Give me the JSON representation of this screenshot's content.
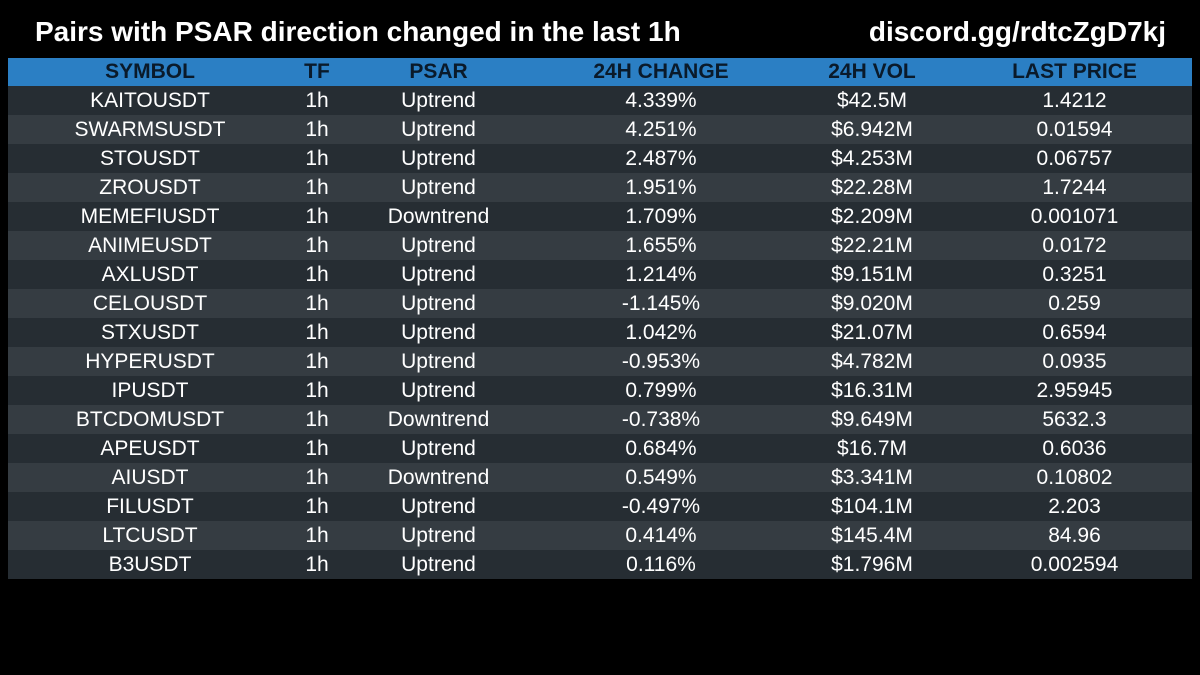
{
  "header": {
    "title": "Pairs with PSAR direction changed in the last 1h",
    "invite": "discord.gg/rdtcZgD7kj"
  },
  "table": {
    "columns": [
      "SYMBOL",
      "TF",
      "PSAR",
      "24H CHANGE",
      "24H VOL",
      "LAST PRICE"
    ],
    "rows": [
      [
        "KAITOUSDT",
        "1h",
        "Uptrend",
        "4.339%",
        "$42.5M",
        "1.4212"
      ],
      [
        "SWARMSUSDT",
        "1h",
        "Uptrend",
        "4.251%",
        "$6.942M",
        "0.01594"
      ],
      [
        "STOUSDT",
        "1h",
        "Uptrend",
        "2.487%",
        "$4.253M",
        "0.06757"
      ],
      [
        "ZROUSDT",
        "1h",
        "Uptrend",
        "1.951%",
        "$22.28M",
        "1.7244"
      ],
      [
        "MEMEFIUSDT",
        "1h",
        "Downtrend",
        "1.709%",
        "$2.209M",
        "0.001071"
      ],
      [
        "ANIMEUSDT",
        "1h",
        "Uptrend",
        "1.655%",
        "$22.21M",
        "0.0172"
      ],
      [
        "AXLUSDT",
        "1h",
        "Uptrend",
        "1.214%",
        "$9.151M",
        "0.3251"
      ],
      [
        "CELOUSDT",
        "1h",
        "Uptrend",
        "-1.145%",
        "$9.020M",
        "0.259"
      ],
      [
        "STXUSDT",
        "1h",
        "Uptrend",
        "1.042%",
        "$21.07M",
        "0.6594"
      ],
      [
        "HYPERUSDT",
        "1h",
        "Uptrend",
        "-0.953%",
        "$4.782M",
        "0.0935"
      ],
      [
        "IPUSDT",
        "1h",
        "Uptrend",
        "0.799%",
        "$16.31M",
        "2.95945"
      ],
      [
        "BTCDOMUSDT",
        "1h",
        "Downtrend",
        "-0.738%",
        "$9.649M",
        "5632.3"
      ],
      [
        "APEUSDT",
        "1h",
        "Uptrend",
        "0.684%",
        "$16.7M",
        "0.6036"
      ],
      [
        "AIUSDT",
        "1h",
        "Downtrend",
        "0.549%",
        "$3.341M",
        "0.10802"
      ],
      [
        "FILUSDT",
        "1h",
        "Uptrend",
        "-0.497%",
        "$104.1M",
        "2.203"
      ],
      [
        "LTCUSDT",
        "1h",
        "Uptrend",
        "0.414%",
        "$145.4M",
        "84.96"
      ],
      [
        "B3USDT",
        "1h",
        "Uptrend",
        "0.116%",
        "$1.796M",
        "0.002594"
      ]
    ]
  },
  "colors": {
    "background": "#000000",
    "header_row": "#2b7fc4",
    "row_dark": "#262d33",
    "row_light": "#353c42",
    "text": "#ffffff",
    "header_text": "#0a1a2a"
  }
}
